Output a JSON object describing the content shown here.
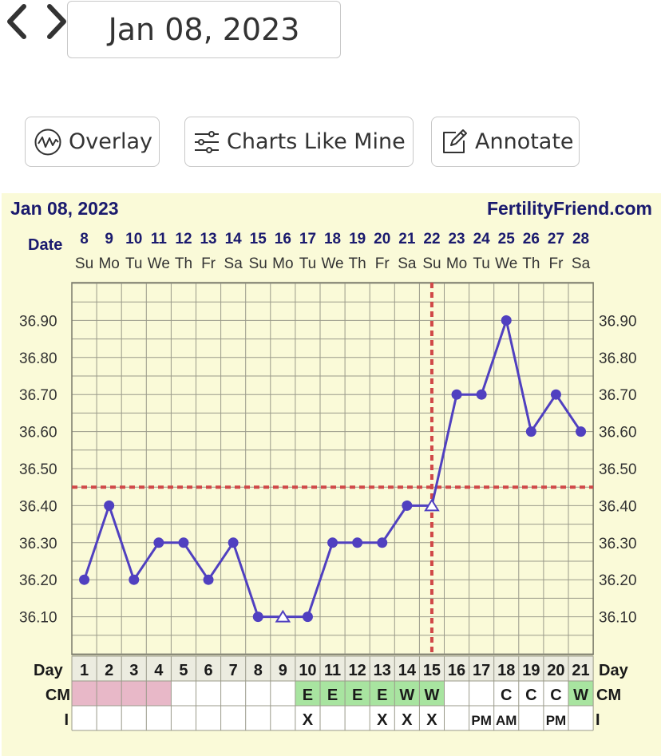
{
  "nav": {
    "selected_date": "Jan 08, 2023",
    "prev_icon": "chevron-left-icon",
    "next_icon": "chevron-right-icon"
  },
  "toolbar": {
    "overlay_label": "Overlay",
    "overlay_icon": "wave-circle-icon",
    "charts_like_mine_label": "Charts Like Mine",
    "charts_like_mine_icon": "sliders-icon",
    "annotate_label": "Annotate",
    "annotate_icon": "edit-icon"
  },
  "colors": {
    "panel_bg": "#fafad8",
    "line": "#5040c0",
    "header_text": "#1a1a6e",
    "coverline": "#d04848",
    "cm_pink": "#e8b8c8",
    "cm_green": "#a8e4a0"
  },
  "chart_data": {
    "type": "line",
    "title": "Jan 08, 2023",
    "source": "FertilityFriend.com",
    "date_label": "Date",
    "dates": [
      "8",
      "9",
      "10",
      "11",
      "12",
      "13",
      "14",
      "15",
      "16",
      "17",
      "18",
      "19",
      "20",
      "21",
      "22",
      "23",
      "24",
      "25",
      "26",
      "27",
      "28"
    ],
    "weekdays": [
      "Su",
      "Mo",
      "Tu",
      "We",
      "Th",
      "Fr",
      "Sa",
      "Su",
      "Mo",
      "Tu",
      "We",
      "Th",
      "Fr",
      "Sa",
      "Su",
      "Mo",
      "Tu",
      "We",
      "Th",
      "Fr",
      "Sa"
    ],
    "cycle_days": [
      "1",
      "2",
      "3",
      "4",
      "5",
      "6",
      "7",
      "8",
      "9",
      "10",
      "11",
      "12",
      "13",
      "14",
      "15",
      "16",
      "17",
      "18",
      "19",
      "20",
      "21"
    ],
    "temperatures": [
      36.2,
      36.4,
      36.2,
      36.3,
      36.3,
      36.2,
      36.3,
      36.1,
      36.1,
      36.1,
      36.3,
      36.3,
      36.3,
      36.4,
      36.4,
      36.7,
      36.7,
      36.9,
      36.6,
      36.7,
      36.6
    ],
    "markers": [
      "circle",
      "circle",
      "circle",
      "circle",
      "circle",
      "circle",
      "circle",
      "circle",
      "open-triangle",
      "circle",
      "circle",
      "circle",
      "circle",
      "circle",
      "open-triangle",
      "circle",
      "circle",
      "circle",
      "circle",
      "circle",
      "circle"
    ],
    "y_ticks": [
      "36.10",
      "36.20",
      "36.30",
      "36.40",
      "36.50",
      "36.60",
      "36.70",
      "36.80",
      "36.90"
    ],
    "ylim": [
      36.0,
      37.0
    ],
    "coverline": 36.45,
    "ovulation_day": 15,
    "grid": true,
    "rows": {
      "day_label": "Day",
      "cm_label": "CM",
      "i_label": "I",
      "cm": [
        "",
        "",
        "",
        "",
        "",
        "",
        "",
        "",
        "",
        "E",
        "E",
        "E",
        "E",
        "W",
        "W",
        "",
        "",
        "C",
        "C",
        "C",
        "W"
      ],
      "cm_fill": [
        "pink",
        "pink",
        "pink",
        "pink",
        "",
        "",
        "",
        "",
        "",
        "green",
        "green",
        "green",
        "green",
        "green",
        "green",
        "",
        "",
        "",
        "",
        "",
        "green"
      ],
      "intercourse": [
        "",
        "",
        "",
        "",
        "",
        "",
        "",
        "",
        "",
        "X",
        "",
        "",
        "X",
        "X",
        "X",
        "",
        "PM",
        "AM",
        "",
        "PM",
        ""
      ]
    }
  }
}
